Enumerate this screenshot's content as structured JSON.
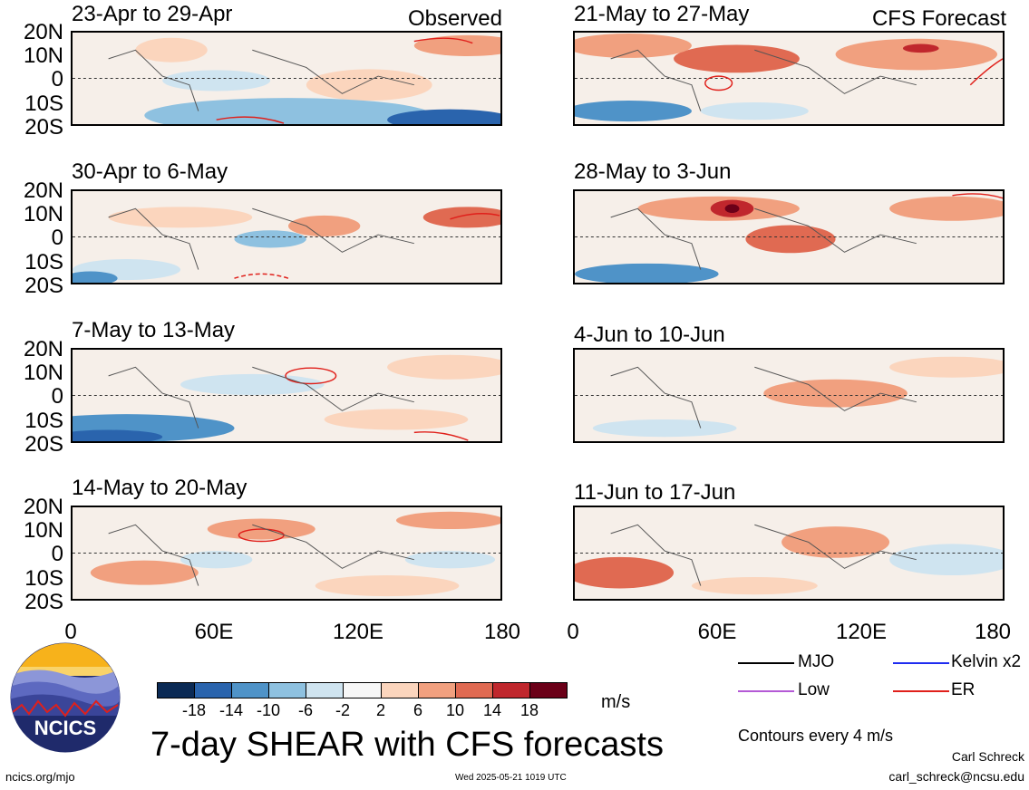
{
  "panels": [
    {
      "title": "23-Apr to 29-Apr",
      "tag": "Observed"
    },
    {
      "title": "30-Apr to 6-May",
      "tag": ""
    },
    {
      "title": "7-May to 13-May",
      "tag": ""
    },
    {
      "title": "14-May to 20-May",
      "tag": ""
    },
    {
      "title": "21-May to 27-May",
      "tag": "CFS Forecast"
    },
    {
      "title": "28-May to 3-Jun",
      "tag": ""
    },
    {
      "title": "4-Jun to 10-Jun",
      "tag": ""
    },
    {
      "title": "11-Jun to 17-Jun",
      "tag": ""
    }
  ],
  "lat_labels": [
    "20N",
    "10N",
    "0",
    "10S",
    "20S"
  ],
  "lon_labels": [
    "0",
    "60E",
    "120E",
    "180"
  ],
  "colorbar": {
    "labels": [
      "-18",
      "-14",
      "-10",
      "-6",
      "-2",
      "2",
      "6",
      "10",
      "14",
      "18"
    ],
    "colors": [
      "#0b2a55",
      "#2a64ad",
      "#4f93c8",
      "#8ec1e0",
      "#cfe4f0",
      "#f7f7f7",
      "#fbd5bd",
      "#f1a07f",
      "#e06a52",
      "#c0272d",
      "#6b0018"
    ],
    "unit": "m/s"
  },
  "legend": {
    "items": [
      {
        "label": "MJO",
        "color": "#000000"
      },
      {
        "label": "Kelvin x2",
        "color": "#1f2cf0"
      },
      {
        "label": "Low",
        "color": "#b45ad6"
      },
      {
        "label": "ER",
        "color": "#e0201b"
      }
    ],
    "contours_note": "Contours every 4 m/s"
  },
  "main_title": "7-day SHEAR with CFS forecasts",
  "logo_text": "NCICS",
  "footer": {
    "url": "ncics.org/mjo",
    "timestamp": "Wed 2025-05-21 1019 UTC",
    "author": "Carl Schreck",
    "email": "carl_schreck@ncsu.edu"
  }
}
